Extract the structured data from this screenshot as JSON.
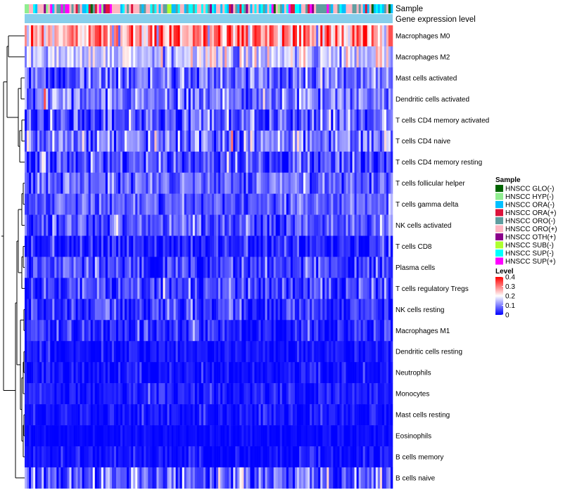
{
  "chart_data": {
    "type": "heatmap",
    "annotation_labels": [
      "Sample",
      "Gene expression level"
    ],
    "n_samples": 173,
    "rows": [
      {
        "label": "Macrophages M0",
        "mean": 0.27,
        "sd": 0.09
      },
      {
        "label": "Macrophages M2",
        "mean": 0.15,
        "sd": 0.05
      },
      {
        "label": "Mast cells activated",
        "mean": 0.08,
        "sd": 0.05
      },
      {
        "label": "Dendritic cells activated",
        "mean": 0.09,
        "sd": 0.05
      },
      {
        "label": "T cells CD4 memory activated",
        "mean": 0.06,
        "sd": 0.05
      },
      {
        "label": "T cells CD4 naive",
        "mean": 0.09,
        "sd": 0.06
      },
      {
        "label": "T cells CD4 memory resting",
        "mean": 0.06,
        "sd": 0.05
      },
      {
        "label": "T cells follicular helper",
        "mean": 0.07,
        "sd": 0.04
      },
      {
        "label": "T cells gamma delta",
        "mean": 0.07,
        "sd": 0.04
      },
      {
        "label": "NK cells activated",
        "mean": 0.06,
        "sd": 0.04
      },
      {
        "label": "T cells CD8",
        "mean": 0.02,
        "sd": 0.03
      },
      {
        "label": "Plasma cells",
        "mean": 0.05,
        "sd": 0.04
      },
      {
        "label": "T cells regulatory  Tregs",
        "mean": 0.05,
        "sd": 0.04
      },
      {
        "label": "NK cells resting",
        "mean": 0.04,
        "sd": 0.04
      },
      {
        "label": "Macrophages M1",
        "mean": 0.03,
        "sd": 0.03
      },
      {
        "label": "Dendritic cells resting",
        "mean": 0.01,
        "sd": 0.02
      },
      {
        "label": "Neutrophils",
        "mean": 0.01,
        "sd": 0.02
      },
      {
        "label": "Monocytes",
        "mean": 0.02,
        "sd": 0.02
      },
      {
        "label": "Mast cells resting",
        "mean": 0.01,
        "sd": 0.02
      },
      {
        "label": "Eosinophils",
        "mean": 0.005,
        "sd": 0.01
      },
      {
        "label": "B cells memory",
        "mean": 0.01,
        "sd": 0.02
      },
      {
        "label": "B cells naive",
        "mean": 0.06,
        "sd": 0.06
      }
    ],
    "legend_sample": {
      "title": "Sample",
      "entries": [
        {
          "label": "HNSCC GLO(-)",
          "color": "#006400"
        },
        {
          "label": "HNSCC HYP(-)",
          "color": "#90EE90"
        },
        {
          "label": "HNSCC ORA(-)",
          "color": "#00BFFF"
        },
        {
          "label": "HNSCC ORA(+)",
          "color": "#DC143C"
        },
        {
          "label": "HNSCC ORO(-)",
          "color": "#5F9EA0"
        },
        {
          "label": "HNSCC ORO(+)",
          "color": "#FFB6C1"
        },
        {
          "label": "HNSCC OTH(+)",
          "color": "#8B008B"
        },
        {
          "label": "HNSCC SUB(-)",
          "color": "#ADFF2F"
        },
        {
          "label": "HNSCC SUP(-)",
          "color": "#00FFFF"
        },
        {
          "label": "HNSCC SUP(+)",
          "color": "#FF00FF"
        }
      ]
    },
    "legend_level": {
      "title": "Level",
      "range": [
        0,
        0.4
      ],
      "ticks": [
        "0.4",
        "0.3",
        "0.2",
        "0.1",
        "0"
      ],
      "colors": [
        "#0000FF",
        "#FFFFFF",
        "#FF0000"
      ]
    },
    "gene_expression_bar_color": "#87CEEB"
  }
}
